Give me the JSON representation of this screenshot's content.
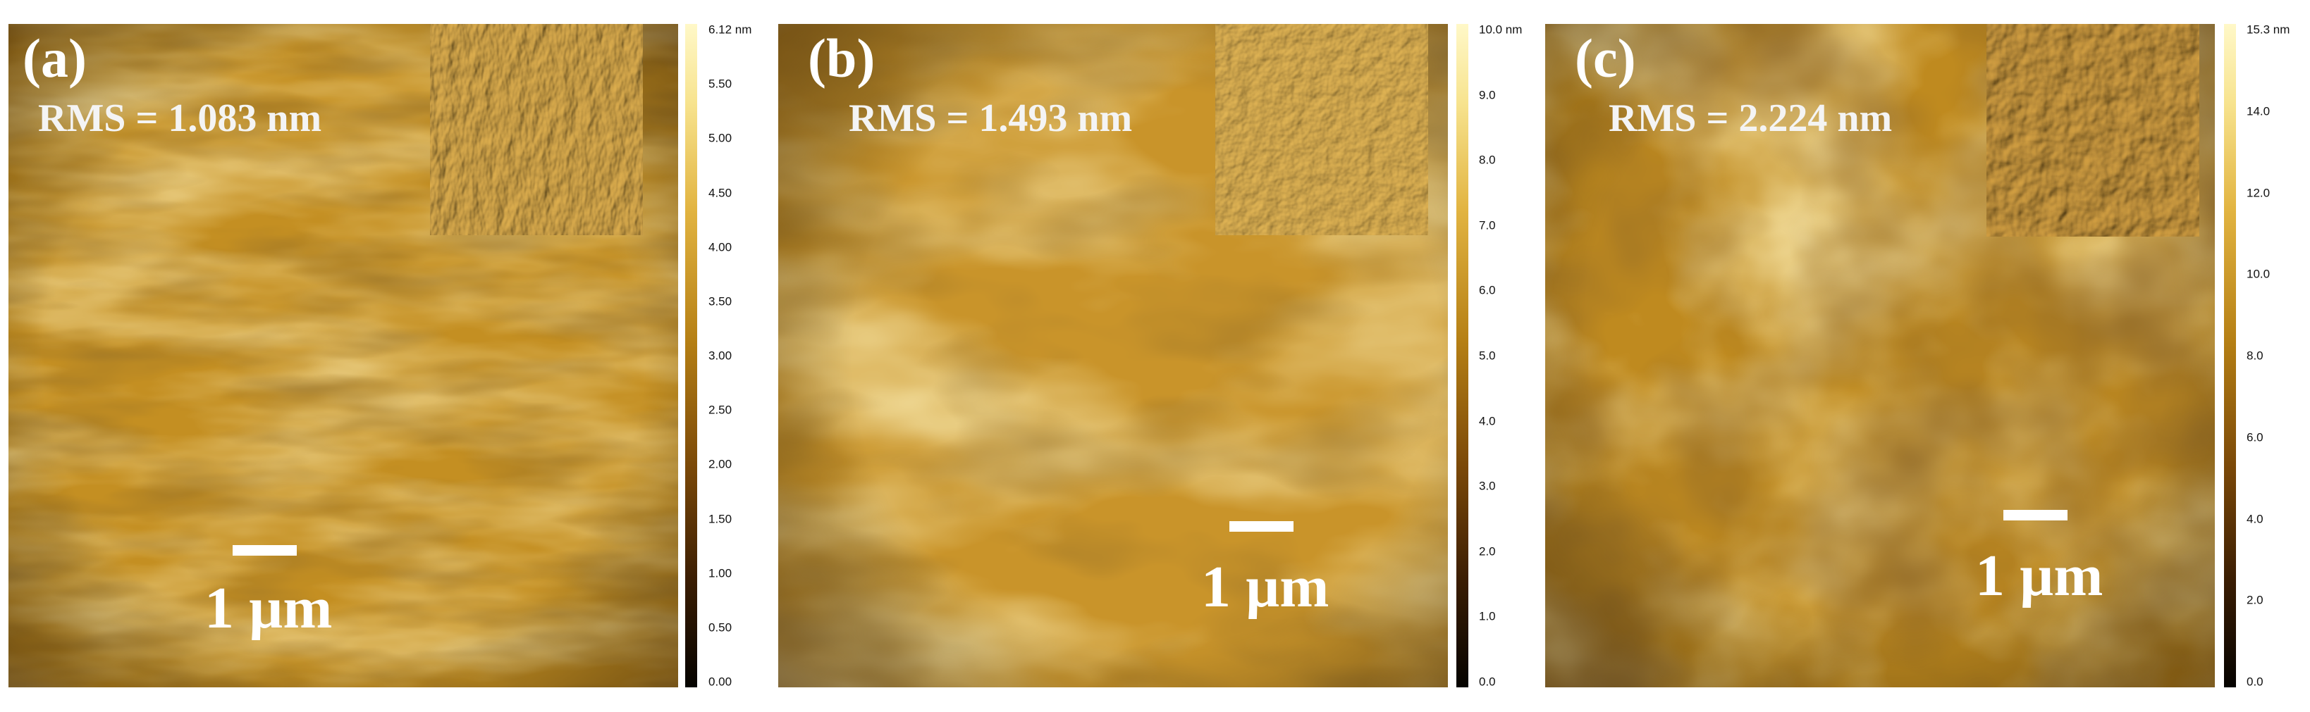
{
  "panels": [
    {
      "label": "(a)",
      "rms": "RMS = 1.083 nm",
      "scale_text": "1 µm",
      "colorbar_ticks": [
        "6.12 nm",
        "5.50",
        "5.00",
        "4.50",
        "4.00",
        "3.50",
        "3.00",
        "2.50",
        "2.00",
        "1.50",
        "1.00",
        "0.50",
        "0.00"
      ]
    },
    {
      "label": "(b)",
      "rms": "RMS = 1.493 nm",
      "scale_text": "1 µm",
      "colorbar_ticks": [
        "10.0 nm",
        "9.0",
        "8.0",
        "7.0",
        "6.0",
        "5.0",
        "4.0",
        "3.0",
        "2.0",
        "1.0",
        "0.0"
      ]
    },
    {
      "label": "(c)",
      "rms": "RMS = 2.224 nm",
      "scale_text": "1 µm",
      "colorbar_ticks": [
        "15.3 nm",
        "14.0",
        "12.0",
        "10.0",
        "8.0",
        "6.0",
        "4.0",
        "2.0",
        "0.0"
      ]
    }
  ],
  "colors": {
    "surface_base": "#c48f22",
    "surface_light": "#f3d36d",
    "surface_dark": "#5a3306",
    "annotation_text": "#ffffff"
  }
}
